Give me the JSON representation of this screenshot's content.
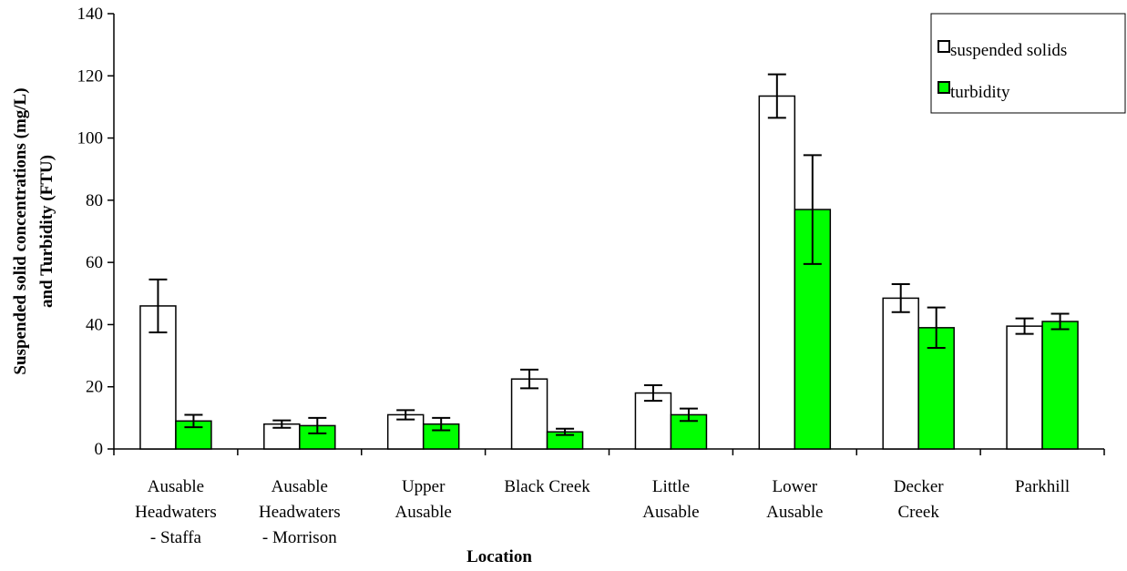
{
  "chart_data": {
    "type": "bar",
    "xlabel": "Location",
    "ylabel_lines": [
      "Suspended solid concentrations (mg/L)",
      "and Turbidity (FTU)"
    ],
    "ylim": [
      0,
      140
    ],
    "yticks": [
      0,
      20,
      40,
      60,
      80,
      100,
      120,
      140
    ],
    "categories": [
      [
        "Ausable",
        "Headwaters",
        "- Staffa"
      ],
      [
        "Ausable",
        "Headwaters",
        "- Morrison"
      ],
      [
        "Upper",
        "Ausable"
      ],
      [
        "Black Creek"
      ],
      [
        "Little",
        "Ausable"
      ],
      [
        "Lower",
        "Ausable"
      ],
      [
        "Decker",
        "Creek"
      ],
      [
        "Parkhill"
      ]
    ],
    "series": [
      {
        "name": "suspended solids",
        "color": "#ffffff",
        "values": [
          46,
          8,
          11,
          22.5,
          18,
          113.5,
          48.5,
          39.5
        ],
        "errors": [
          8.5,
          1.2,
          1.5,
          3,
          2.5,
          7,
          4.5,
          2.5
        ]
      },
      {
        "name": "turbidity",
        "color": "#00ff00",
        "values": [
          9,
          7.5,
          8,
          5.5,
          11,
          77,
          39,
          41
        ],
        "errors": [
          2,
          2.5,
          2,
          1,
          2,
          17.5,
          6.5,
          2.5
        ]
      }
    ],
    "legend_position": "top-right",
    "grid": false
  }
}
